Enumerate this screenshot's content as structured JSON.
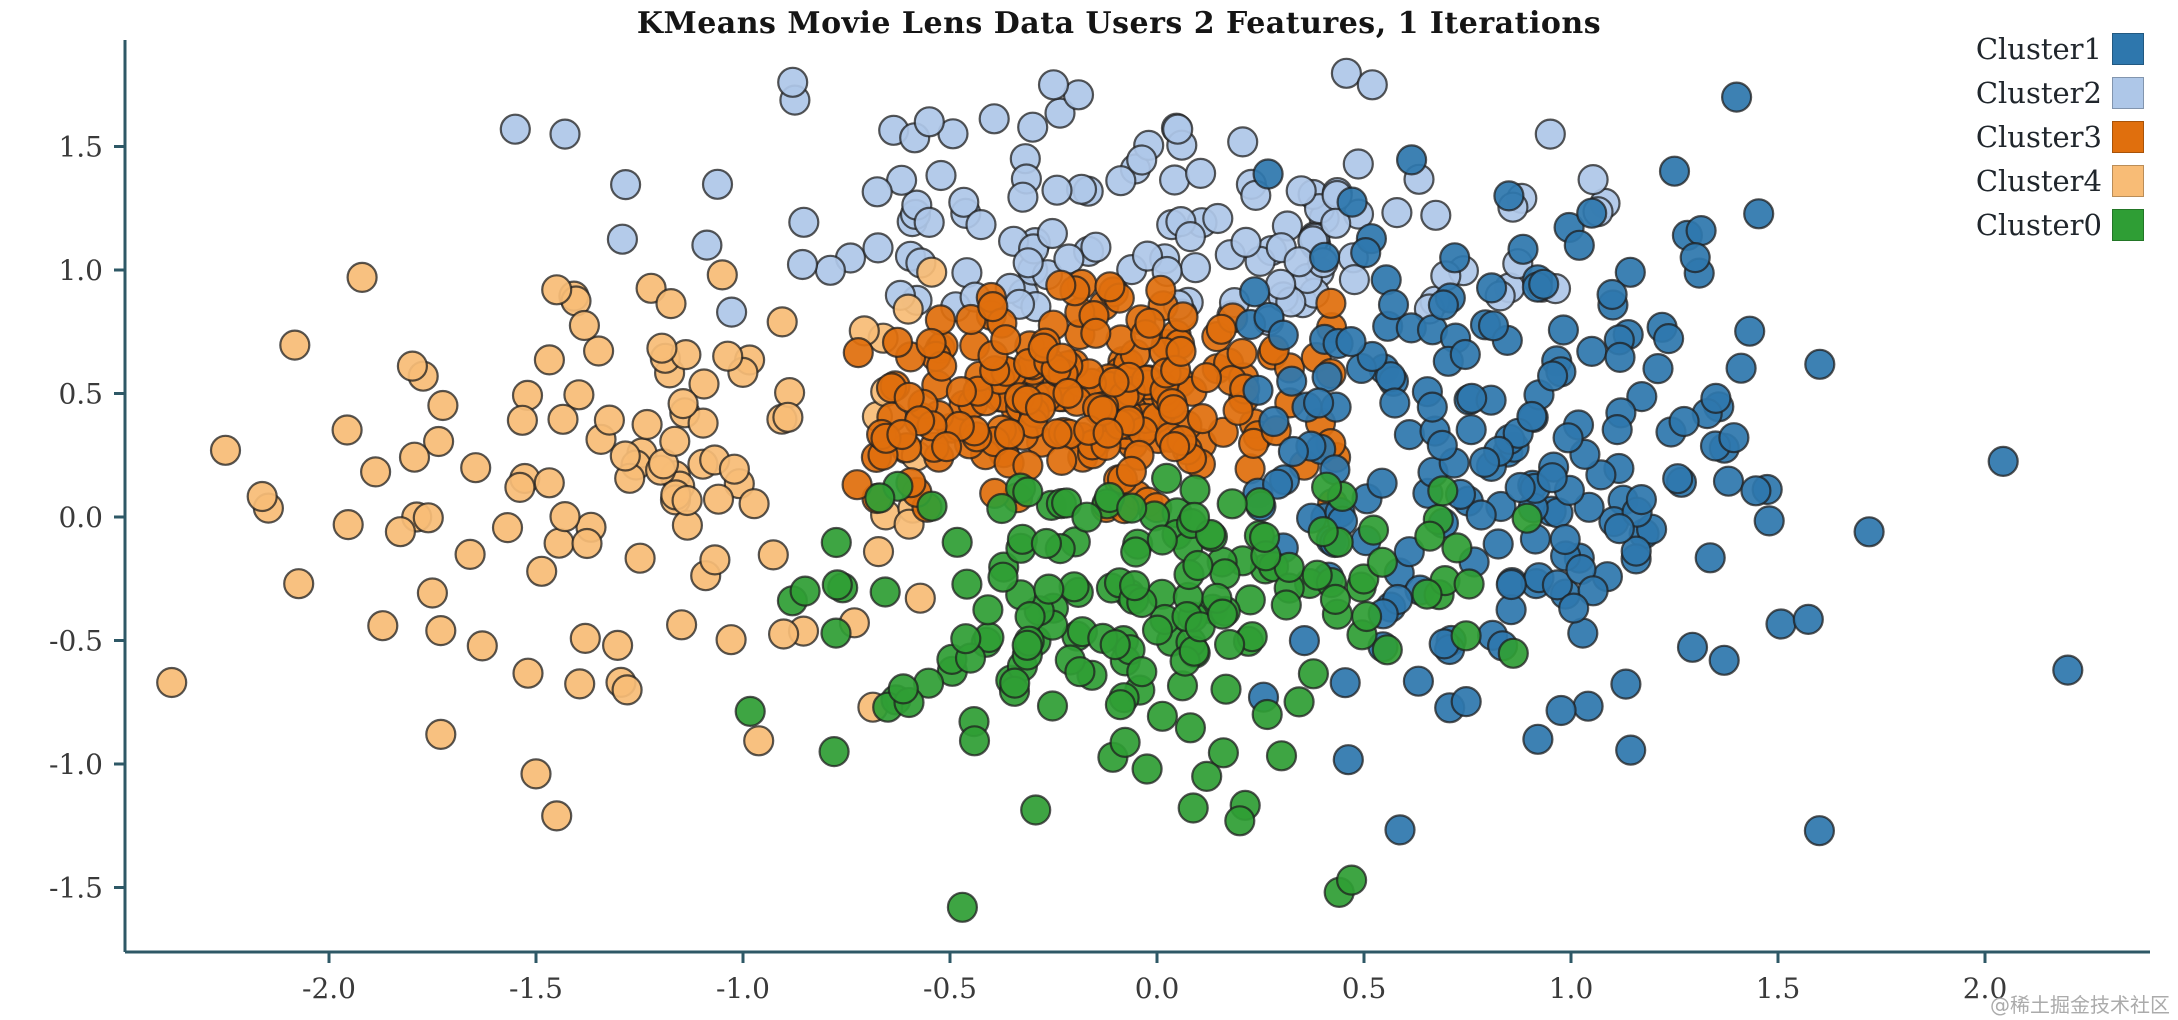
{
  "watermark": "@稀土掘金技术社区",
  "colors": {
    "axis": "#2e5866",
    "tick_label": "#3a3a3a",
    "title": "#151515",
    "marker_edge": "#1f1f1f",
    "background": "#ffffff"
  },
  "chart_data": {
    "type": "scatter",
    "title": "KMeans Movie Lens Data Users 2 Features, 1 Iterations",
    "xlabel": "",
    "ylabel": "",
    "xlim": [
      -2.5,
      2.47
    ],
    "ylim": [
      -1.76,
      1.9
    ],
    "x_ticks": [
      -2.0,
      -1.5,
      -1.0,
      -0.5,
      0.0,
      0.5,
      1.0,
      1.5,
      2.0
    ],
    "x_tick_labels": [
      "-2.0",
      "-1.5",
      "-1.0",
      "-0.5",
      "0.0",
      "0.5",
      "1.0",
      "1.5",
      "2.0"
    ],
    "y_ticks": [
      1.5,
      1.0,
      0.5,
      0.0,
      -0.5,
      -1.0,
      -1.5
    ],
    "y_tick_labels": [
      "1.5",
      "1.0",
      "0.5",
      "0.0",
      "-0.5",
      "-1.0",
      "-1.5"
    ],
    "grid": false,
    "legend_position": "top-right",
    "marker_radius_px": 14.5,
    "draw_order": [
      "Cluster2",
      "Cluster4",
      "Cluster3",
      "Cluster1",
      "Cluster0"
    ],
    "series": [
      {
        "name": "Cluster1",
        "color": "#2e77ad",
        "n": 200,
        "seed": 101,
        "center": [
          0.75,
          0.25
        ],
        "spread": [
          0.4,
          0.52
        ],
        "xrange": [
          0.22,
          2.3
        ],
        "yrange": [
          -1.35,
          1.78
        ],
        "extra_points": [
          [
            1.4,
            1.7
          ],
          [
            2.2,
            -0.62
          ],
          [
            1.72,
            -0.06
          ],
          [
            1.6,
            -1.27
          ],
          [
            1.37,
            -0.58
          ],
          [
            1.25,
            1.4
          ],
          [
            1.05,
            1.23
          ],
          [
            1.3,
            1.05
          ],
          [
            0.92,
            -0.9
          ],
          [
            1.35,
            0.48
          ],
          [
            1.02,
            1.1
          ],
          [
            0.85,
            1.3
          ]
        ]
      },
      {
        "name": "Cluster2",
        "color": "#aec7e8",
        "n": 130,
        "seed": 202,
        "center": [
          -0.08,
          1.12
        ],
        "spread": [
          0.6,
          0.28
        ],
        "xrange": [
          -1.65,
          1.1
        ],
        "yrange": [
          0.78,
          1.85
        ],
        "extra_points": [
          [
            -0.88,
            1.76
          ],
          [
            -0.25,
            1.75
          ],
          [
            0.05,
            1.57
          ],
          [
            -1.55,
            1.57
          ],
          [
            -1.43,
            1.55
          ],
          [
            0.52,
            1.75
          ],
          [
            0.95,
            1.55
          ],
          [
            -0.55,
            1.6
          ]
        ]
      },
      {
        "name": "Cluster3",
        "color": "#e06f0d",
        "n": 230,
        "seed": 303,
        "center": [
          -0.13,
          0.47
        ],
        "spread": [
          0.3,
          0.22
        ],
        "xrange": [
          -0.8,
          0.47
        ],
        "yrange": [
          0.03,
          0.97
        ],
        "extra_points": []
      },
      {
        "name": "Cluster4",
        "color": "#f8bc76",
        "n": 105,
        "seed": 404,
        "center": [
          -1.18,
          0.18
        ],
        "spread": [
          0.45,
          0.48
        ],
        "xrange": [
          -2.45,
          -0.52
        ],
        "yrange": [
          -1.25,
          1.0
        ],
        "extra_points": [
          [
            -2.38,
            -0.67
          ],
          [
            -2.25,
            0.27
          ],
          [
            -1.92,
            0.97
          ],
          [
            -1.87,
            -0.44
          ],
          [
            -1.73,
            -0.88
          ],
          [
            -1.73,
            -0.46
          ],
          [
            -1.5,
            -1.04
          ],
          [
            -1.45,
            -1.21
          ],
          [
            -1.28,
            -0.7
          ],
          [
            -1.05,
            0.98
          ],
          [
            -1.45,
            0.92
          ]
        ]
      },
      {
        "name": "Cluster0",
        "color": "#2f9e35",
        "n": 170,
        "seed": 505,
        "center": [
          -0.02,
          -0.33
        ],
        "spread": [
          0.4,
          0.35
        ],
        "xrange": [
          -1.0,
          0.97
        ],
        "yrange": [
          -1.65,
          0.17
        ],
        "extra_points": [
          [
            -0.47,
            -1.58
          ],
          [
            0.44,
            -1.52
          ],
          [
            0.47,
            -1.47
          ],
          [
            0.2,
            -1.23
          ],
          [
            -0.78,
            -0.95
          ],
          [
            -0.85,
            -0.3
          ],
          [
            0.12,
            -1.05
          ]
        ]
      }
    ]
  }
}
